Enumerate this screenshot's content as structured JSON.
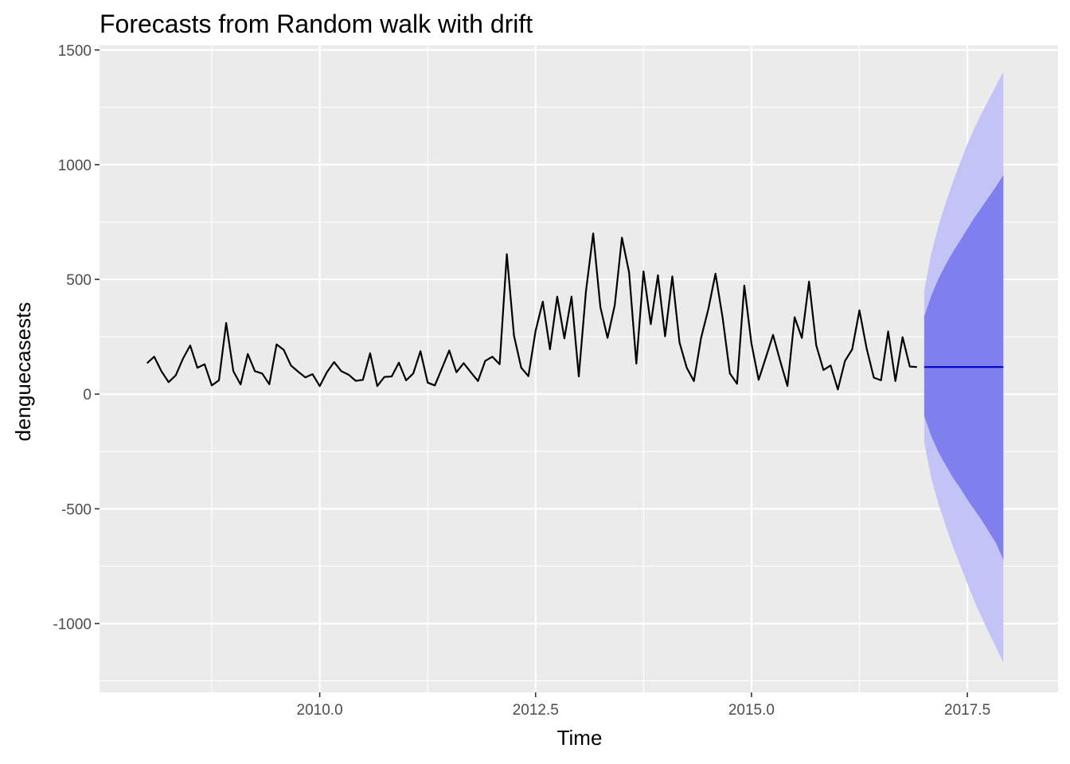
{
  "chart_data": {
    "type": "line",
    "title": "Forecasts from Random walk with drift",
    "xlabel": "Time",
    "ylabel": "denguecasests",
    "xlim": [
      2007.45,
      2018.55
    ],
    "ylim": [
      -1300,
      1520
    ],
    "xticks": [
      2010.0,
      2012.5,
      2015.0,
      2017.5
    ],
    "xtick_labels": [
      "2010.0",
      "2012.5",
      "2015.0",
      "2017.5"
    ],
    "yticks": [
      -1000,
      -500,
      0,
      500,
      1000,
      1500
    ],
    "ytick_labels": [
      "-1000",
      "-500",
      "0",
      "500",
      "1000",
      "1500"
    ],
    "grid": true,
    "legend": "none",
    "colors": {
      "panel": "#ebebeb",
      "grid": "#ffffff",
      "series": "#000000",
      "forecast": "#0000cc",
      "band80": "#7f7fee",
      "band95": "#c3c3f5"
    },
    "series": [
      {
        "role": "observed",
        "x_start": 2008.0,
        "x_step": 0.08333,
        "values": [
          135,
          163,
          100,
          52,
          82,
          155,
          212,
          115,
          130,
          38,
          60,
          310,
          100,
          42,
          175,
          100,
          90,
          43,
          217,
          193,
          125,
          98,
          73,
          87,
          35,
          95,
          140,
          100,
          85,
          58,
          62,
          178,
          35,
          75,
          77,
          137,
          60,
          90,
          187,
          50,
          38,
          113,
          190,
          95,
          135,
          95,
          57,
          145,
          163,
          130,
          610,
          255,
          115,
          78,
          275,
          403,
          195,
          425,
          243,
          425,
          77,
          448,
          700,
          380,
          245,
          388,
          682,
          530,
          133,
          535,
          305,
          518,
          252,
          513,
          225,
          115,
          57,
          245,
          370,
          525,
          330,
          90,
          45,
          473,
          220,
          62,
          160,
          258,
          143,
          35,
          335,
          245,
          490,
          212,
          105,
          125,
          20,
          145,
          195,
          365,
          200,
          72,
          60,
          273,
          57,
          248,
          120,
          118
        ]
      }
    ],
    "forecast": {
      "x": [
        2017.0,
        2017.083,
        2017.167,
        2017.25,
        2017.333,
        2017.417,
        2017.5,
        2017.583,
        2017.667,
        2017.75,
        2017.833,
        2017.917
      ],
      "mean": [
        118,
        118,
        118,
        118,
        118,
        118,
        118,
        118,
        118,
        118,
        118,
        118
      ],
      "lo80": [
        -95,
        -185,
        -255,
        -310,
        -365,
        -410,
        -460,
        -505,
        -550,
        -600,
        -650,
        -722
      ],
      "hi80": [
        340,
        430,
        505,
        565,
        620,
        670,
        720,
        770,
        815,
        860,
        905,
        955
      ],
      "lo95": [
        -210,
        -370,
        -480,
        -575,
        -665,
        -745,
        -825,
        -905,
        -975,
        -1040,
        -1105,
        -1170
      ],
      "hi95": [
        450,
        615,
        735,
        835,
        925,
        1010,
        1090,
        1160,
        1225,
        1285,
        1345,
        1405
      ]
    }
  }
}
